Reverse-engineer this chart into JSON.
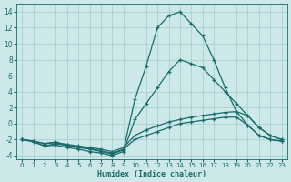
{
  "xlabel": "Humidex (Indice chaleur)",
  "bg_color": "#cce8e8",
  "grid_color": "#aacece",
  "line_color": "#1a6b6b",
  "xlim": [
    -0.5,
    23.5
  ],
  "ylim": [
    -4.5,
    15
  ],
  "yticks": [
    -4,
    -2,
    0,
    2,
    4,
    6,
    8,
    10,
    12,
    14
  ],
  "xticks": [
    0,
    1,
    2,
    3,
    4,
    5,
    6,
    7,
    8,
    9,
    10,
    11,
    12,
    13,
    14,
    15,
    16,
    17,
    18,
    19,
    20,
    21,
    22,
    23
  ],
  "series": [
    {
      "x": [
        0,
        1,
        2,
        3,
        4,
        5,
        6,
        7,
        8,
        9,
        10,
        11,
        12,
        13,
        14,
        15,
        16,
        17,
        18,
        19,
        20,
        21,
        22,
        23
      ],
      "y": [
        -2.0,
        -2.2,
        -2.8,
        -2.5,
        -2.8,
        -3.0,
        -3.2,
        -3.5,
        -3.8,
        -3.3,
        3.0,
        7.2,
        12.0,
        13.5,
        14.0,
        12.5,
        11.0,
        8.0,
        4.5,
        1.5,
        -0.2,
        -1.5,
        -2.0,
        -2.2
      ]
    },
    {
      "x": [
        0,
        1,
        2,
        3,
        4,
        5,
        6,
        7,
        8,
        9,
        10,
        11,
        12,
        13,
        14,
        15,
        16,
        17,
        18,
        19,
        20,
        21,
        22,
        23
      ],
      "y": [
        -2.0,
        -2.3,
        -2.8,
        -2.7,
        -3.0,
        -3.2,
        -3.5,
        -3.7,
        -4.0,
        -3.5,
        0.5,
        2.5,
        4.5,
        6.5,
        8.0,
        7.5,
        7.0,
        5.5,
        4.0,
        2.5,
        1.0,
        -0.5,
        -1.5,
        -2.0
      ]
    },
    {
      "x": [
        0,
        1,
        2,
        3,
        4,
        5,
        6,
        7,
        8,
        9,
        10,
        11,
        12,
        13,
        14,
        15,
        16,
        17,
        18,
        19,
        20,
        21,
        22,
        23
      ],
      "y": [
        -2.0,
        -2.2,
        -2.5,
        -2.4,
        -2.6,
        -2.8,
        -3.0,
        -3.2,
        -3.5,
        -3.0,
        -1.5,
        -0.8,
        -0.3,
        0.2,
        0.5,
        0.8,
        1.0,
        1.2,
        1.4,
        1.5,
        1.0,
        -0.5,
        -1.5,
        -2.0
      ]
    },
    {
      "x": [
        0,
        1,
        2,
        3,
        4,
        5,
        6,
        7,
        8,
        9,
        10,
        11,
        12,
        13,
        14,
        15,
        16,
        17,
        18,
        19,
        20,
        21,
        22,
        23
      ],
      "y": [
        -2.0,
        -2.2,
        -2.5,
        -2.3,
        -2.7,
        -2.9,
        -3.1,
        -3.4,
        -3.7,
        -3.2,
        -2.0,
        -1.5,
        -1.0,
        -0.5,
        0.0,
        0.2,
        0.4,
        0.6,
        0.8,
        0.8,
        -0.2,
        -1.5,
        -2.0,
        -2.2
      ]
    }
  ]
}
